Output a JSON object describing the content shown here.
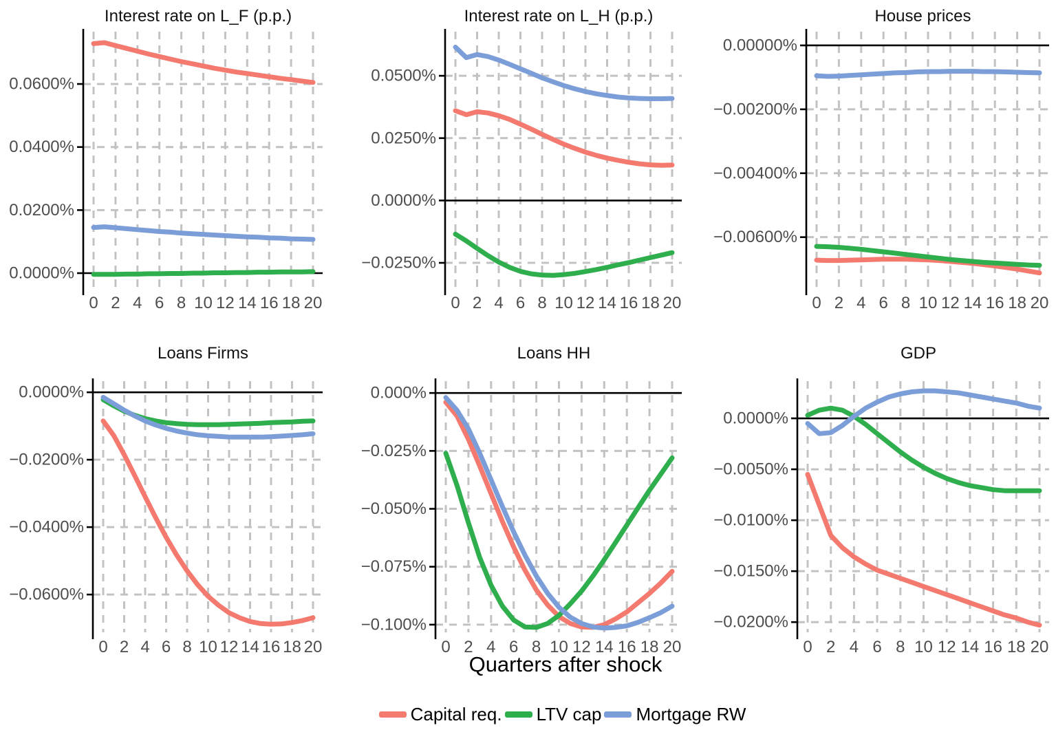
{
  "figure": {
    "x_axis_label": "Quarters after shock"
  },
  "colors": {
    "capital_req": "#F4796E",
    "ltv_cap": "#2EAE4C",
    "mortgage_rw": "#7B9DD8",
    "grid": "#C2C2C2",
    "tick_text": "#4D4D4D",
    "zero_line": "#000000",
    "axis_line": "#000000"
  },
  "legend": {
    "items": [
      {
        "label": "Capital req.",
        "color_key": "capital_req"
      },
      {
        "label": "LTV cap",
        "color_key": "ltv_cap"
      },
      {
        "label": "Mortgage RW",
        "color_key": "mortgage_rw"
      }
    ]
  },
  "chart_data": [
    {
      "type": "line",
      "title": "Interest rate on L_F (p.p.)",
      "x_range": [
        0,
        20
      ],
      "x_tick_labels": [
        "0",
        "2",
        "4",
        "6",
        "8",
        "10",
        "12",
        "14",
        "16",
        "18",
        "20"
      ],
      "y_ticks": [
        0.06,
        0.04,
        0.02,
        0.0
      ],
      "y_tick_labels": [
        "0.0600%",
        "0.0400%",
        "0.0200%",
        "0.0000%"
      ],
      "ylim": [
        -0.0048,
        0.0766
      ],
      "grid": true,
      "series": [
        {
          "name": "Capital req.",
          "color_key": "capital_req",
          "values": [
            0.0728,
            0.0731,
            0.0722,
            0.0713,
            0.0704,
            0.0695,
            0.0687,
            0.0679,
            0.0671,
            0.0664,
            0.0657,
            0.065,
            0.0644,
            0.0638,
            0.0633,
            0.0628,
            0.0623,
            0.0618,
            0.0614,
            0.0609,
            0.0605
          ]
        },
        {
          "name": "LTV cap",
          "color_key": "ltv_cap",
          "values": [
            -0.0004,
            -0.0004,
            -0.0004,
            -0.0003,
            -0.0003,
            -0.0002,
            -0.0002,
            -0.0001,
            -0.0001,
            0.0,
            0.0,
            0.0001,
            0.0001,
            0.0002,
            0.0002,
            0.0003,
            0.0003,
            0.0004,
            0.0004,
            0.0004,
            0.0005
          ]
        },
        {
          "name": "Mortgage RW",
          "color_key": "mortgage_rw",
          "values": [
            0.0145,
            0.0147,
            0.0144,
            0.0141,
            0.0138,
            0.0135,
            0.0132,
            0.013,
            0.0127,
            0.0125,
            0.0123,
            0.0121,
            0.0119,
            0.0117,
            0.0115,
            0.0114,
            0.0112,
            0.0111,
            0.0109,
            0.0108,
            0.0107
          ]
        }
      ]
    },
    {
      "type": "line",
      "title": "Interest rate on L_H (p.p.)",
      "x_range": [
        0,
        20
      ],
      "x_tick_labels": [
        "0",
        "2",
        "4",
        "6",
        "8",
        "10",
        "12",
        "14",
        "16",
        "18",
        "20"
      ],
      "y_ticks": [
        0.05,
        0.025,
        0.0,
        -0.025
      ],
      "y_tick_labels": [
        "0.0500%",
        "0.0250%",
        "0.0000%",
        "−0.0250%"
      ],
      "ylim": [
        -0.0352,
        0.0677
      ],
      "grid": true,
      "series": [
        {
          "name": "Capital req.",
          "color_key": "capital_req",
          "values": [
            0.036,
            0.0344,
            0.0356,
            0.0351,
            0.034,
            0.0325,
            0.0306,
            0.0286,
            0.0265,
            0.0245,
            0.0226,
            0.0209,
            0.0194,
            0.0181,
            0.017,
            0.0161,
            0.0153,
            0.0147,
            0.0143,
            0.0141,
            0.0142
          ]
        },
        {
          "name": "LTV cap",
          "color_key": "ltv_cap",
          "values": [
            -0.0135,
            -0.0162,
            -0.0192,
            -0.0221,
            -0.0247,
            -0.0268,
            -0.0284,
            -0.0294,
            -0.0299,
            -0.03,
            -0.0297,
            -0.0292,
            -0.0285,
            -0.0277,
            -0.0268,
            -0.0258,
            -0.0249,
            -0.0239,
            -0.0229,
            -0.0219,
            -0.0209
          ]
        },
        {
          "name": "Mortgage RW",
          "color_key": "mortgage_rw",
          "values": [
            0.0615,
            0.0573,
            0.0585,
            0.0577,
            0.0563,
            0.0546,
            0.0528,
            0.051,
            0.0492,
            0.0476,
            0.0461,
            0.0448,
            0.0437,
            0.0428,
            0.0421,
            0.0415,
            0.0411,
            0.0409,
            0.0408,
            0.0408,
            0.0409
          ]
        }
      ]
    },
    {
      "type": "line",
      "title": "House prices",
      "x_range": [
        0,
        20
      ],
      "x_tick_labels": [
        "0",
        "2",
        "4",
        "6",
        "8",
        "10",
        "12",
        "14",
        "16",
        "18",
        "20"
      ],
      "y_ticks": [
        0.0,
        -0.002,
        -0.004,
        -0.006
      ],
      "y_tick_labels": [
        "0.00000%",
        "−0.00200%",
        "−0.00400%",
        "−0.00600%"
      ],
      "ylim": [
        -0.0076,
        0.00043
      ],
      "grid": true,
      "series": [
        {
          "name": "Capital req.",
          "color_key": "capital_req",
          "values": [
            -0.00672,
            -0.00673,
            -0.00673,
            -0.00672,
            -0.00671,
            -0.0067,
            -0.00669,
            -0.00669,
            -0.00669,
            -0.0067,
            -0.00671,
            -0.00673,
            -0.00676,
            -0.00679,
            -0.00682,
            -0.00686,
            -0.0069,
            -0.00695,
            -0.007,
            -0.00706,
            -0.00712
          ]
        },
        {
          "name": "LTV cap",
          "color_key": "ltv_cap",
          "values": [
            -0.00629,
            -0.0063,
            -0.00632,
            -0.00635,
            -0.00638,
            -0.00642,
            -0.00646,
            -0.0065,
            -0.00654,
            -0.00658,
            -0.00662,
            -0.00666,
            -0.0067,
            -0.00673,
            -0.00676,
            -0.00679,
            -0.00681,
            -0.00683,
            -0.00685,
            -0.00687,
            -0.00688
          ]
        },
        {
          "name": "Mortgage RW",
          "color_key": "mortgage_rw",
          "values": [
            -0.00095,
            -0.00097,
            -0.00096,
            -0.00094,
            -0.00092,
            -0.0009,
            -0.00088,
            -0.00086,
            -0.00085,
            -0.00083,
            -0.00082,
            -0.00082,
            -0.00081,
            -0.00081,
            -0.00081,
            -0.00082,
            -0.00082,
            -0.00083,
            -0.00084,
            -0.00085,
            -0.00086
          ]
        }
      ]
    },
    {
      "type": "line",
      "title": "Loans Firms",
      "x_range": [
        0,
        20
      ],
      "x_tick_labels": [
        "0",
        "2",
        "4",
        "6",
        "8",
        "10",
        "12",
        "14",
        "16",
        "18",
        "20"
      ],
      "y_ticks": [
        0.0,
        -0.02,
        -0.04,
        -0.06
      ],
      "y_tick_labels": [
        "0.0000%",
        "−0.0200%",
        "−0.0400%",
        "−0.0600%"
      ],
      "ylim": [
        -0.0712,
        0.0033
      ],
      "grid": true,
      "series": [
        {
          "name": "Capital req.",
          "color_key": "capital_req",
          "values": [
            -0.0085,
            -0.0128,
            -0.0185,
            -0.0247,
            -0.031,
            -0.0372,
            -0.043,
            -0.0483,
            -0.053,
            -0.0571,
            -0.0605,
            -0.0632,
            -0.0654,
            -0.0669,
            -0.068,
            -0.0686,
            -0.0688,
            -0.0687,
            -0.0683,
            -0.0677,
            -0.0669
          ]
        },
        {
          "name": "LTV cap",
          "color_key": "ltv_cap",
          "values": [
            -0.0022,
            -0.004,
            -0.0056,
            -0.0068,
            -0.0078,
            -0.0085,
            -0.009,
            -0.0093,
            -0.0095,
            -0.0096,
            -0.0096,
            -0.0096,
            -0.0095,
            -0.0094,
            -0.0093,
            -0.0092,
            -0.009,
            -0.0089,
            -0.0088,
            -0.0086,
            -0.0085
          ]
        },
        {
          "name": "Mortgage RW",
          "color_key": "mortgage_rw",
          "values": [
            -0.0015,
            -0.0034,
            -0.0053,
            -0.007,
            -0.0085,
            -0.0097,
            -0.0107,
            -0.0115,
            -0.0121,
            -0.0126,
            -0.0129,
            -0.0131,
            -0.0133,
            -0.0133,
            -0.0133,
            -0.0133,
            -0.0132,
            -0.013,
            -0.0128,
            -0.0126,
            -0.0123
          ]
        }
      ]
    },
    {
      "type": "line",
      "title": "Loans HH",
      "x_range": [
        0,
        20
      ],
      "x_tick_labels": [
        "0",
        "2",
        "4",
        "6",
        "8",
        "10",
        "12",
        "14",
        "16",
        "18",
        "20"
      ],
      "y_ticks": [
        0.0,
        -0.025,
        -0.05,
        -0.075,
        -0.1
      ],
      "y_tick_labels": [
        "0.000%",
        "−0.025%",
        "−0.050%",
        "−0.075%",
        "−0.100%"
      ],
      "ylim": [
        -0.1033,
        0.0051
      ],
      "grid": true,
      "series": [
        {
          "name": "Capital req.",
          "color_key": "capital_req",
          "values": [
            -0.004,
            -0.01,
            -0.02,
            -0.0315,
            -0.0435,
            -0.0555,
            -0.0665,
            -0.0765,
            -0.085,
            -0.0915,
            -0.0965,
            -0.0995,
            -0.101,
            -0.1012,
            -0.1,
            -0.0975,
            -0.0945,
            -0.0905,
            -0.0865,
            -0.082,
            -0.077
          ]
        },
        {
          "name": "LTV cap",
          "color_key": "ltv_cap",
          "values": [
            -0.026,
            -0.04,
            -0.056,
            -0.071,
            -0.083,
            -0.092,
            -0.098,
            -0.101,
            -0.1012,
            -0.0995,
            -0.096,
            -0.091,
            -0.0855,
            -0.079,
            -0.072,
            -0.0645,
            -0.057,
            -0.0495,
            -0.042,
            -0.035,
            -0.028
          ]
        },
        {
          "name": "Mortgage RW",
          "color_key": "mortgage_rw",
          "values": [
            -0.002,
            -0.0075,
            -0.0155,
            -0.026,
            -0.0375,
            -0.049,
            -0.06,
            -0.07,
            -0.079,
            -0.0865,
            -0.0925,
            -0.0968,
            -0.0995,
            -0.101,
            -0.1015,
            -0.1012,
            -0.1005,
            -0.099,
            -0.097,
            -0.0948,
            -0.092
          ]
        }
      ]
    },
    {
      "type": "line",
      "title": "GDP",
      "x_range": [
        0,
        20
      ],
      "x_tick_labels": [
        "0",
        "2",
        "4",
        "6",
        "8",
        "10",
        "12",
        "14",
        "16",
        "18",
        "20"
      ],
      "y_ticks": [
        0.0,
        -0.005,
        -0.01,
        -0.015,
        -0.02
      ],
      "y_tick_labels": [
        "0.0000%",
        "−0.0050%",
        "−0.0100%",
        "−0.0150%",
        "−0.0200%"
      ],
      "ylim": [
        -0.021,
        0.00365
      ],
      "grid": true,
      "series": [
        {
          "name": "Capital req.",
          "color_key": "capital_req",
          "values": [
            -0.0055,
            -0.0085,
            -0.0115,
            -0.0127,
            -0.0136,
            -0.0143,
            -0.0149,
            -0.0153,
            -0.0157,
            -0.0161,
            -0.0165,
            -0.0169,
            -0.0173,
            -0.0177,
            -0.0181,
            -0.0185,
            -0.0189,
            -0.0193,
            -0.0196,
            -0.02,
            -0.0203
          ]
        },
        {
          "name": "LTV cap",
          "color_key": "ltv_cap",
          "values": [
            0.0003,
            0.0008,
            0.001,
            0.0008,
            0.0002,
            -0.0006,
            -0.0015,
            -0.0024,
            -0.0033,
            -0.0041,
            -0.0048,
            -0.0054,
            -0.0059,
            -0.0063,
            -0.0066,
            -0.0068,
            -0.007,
            -0.0071,
            -0.0071,
            -0.0071,
            -0.0071
          ]
        },
        {
          "name": "Mortgage RW",
          "color_key": "mortgage_rw",
          "values": [
            -0.0005,
            -0.0015,
            -0.0014,
            -0.0007,
            0.0002,
            0.001,
            0.0016,
            0.0021,
            0.0024,
            0.0026,
            0.0027,
            0.0027,
            0.0026,
            0.0025,
            0.0023,
            0.0021,
            0.0019,
            0.0017,
            0.0015,
            0.0012,
            0.001
          ]
        }
      ]
    }
  ]
}
